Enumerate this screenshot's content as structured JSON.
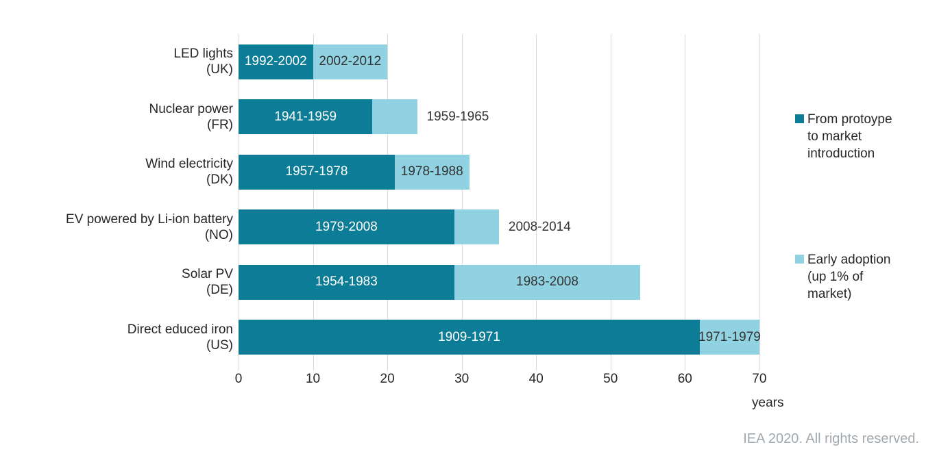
{
  "chart_data": {
    "type": "bar",
    "orientation": "horizontal",
    "stacked": true,
    "title": "",
    "xlabel": "years",
    "xticks": [
      0,
      10,
      20,
      30,
      40,
      50,
      60,
      70
    ],
    "xmax": 72.5,
    "grid": true,
    "legend_position": "right",
    "categories": [
      [
        "LED lights",
        "(UK)"
      ],
      [
        "Nuclear power",
        "(FR)"
      ],
      [
        "Wind electricity",
        "(DK)"
      ],
      [
        "EV powered by Li-ion battery",
        "(NO)"
      ],
      [
        "Solar PV",
        "(DE)"
      ],
      [
        "Direct educed iron",
        "(US)"
      ]
    ],
    "series": [
      {
        "name": "From protoype to market introduction",
        "color": "#0d7c96",
        "label_color": "#ffffff",
        "values": [
          10,
          18,
          21,
          29,
          29,
          62
        ],
        "labels": [
          "1992-2002",
          "1941-1959",
          "1957-1978",
          "1979-2008",
          "1954-1983",
          "1909-1971"
        ],
        "placements": [
          "inside",
          "inside",
          "inside",
          "inside",
          "inside",
          "inside"
        ]
      },
      {
        "name": "Early adoption (up 1% of market)",
        "color": "#90d2e2",
        "label_color": "#333333",
        "values": [
          10,
          6,
          10,
          6,
          25,
          8
        ],
        "labels": [
          "2002-2012",
          "1959-1965",
          "1978-1988",
          "2008-2014",
          "1983-2008",
          "1971-1979"
        ],
        "placements": [
          "inside",
          "outside",
          "inside",
          "outside",
          "inside",
          "inside"
        ]
      }
    ],
    "totals": [
      20,
      24,
      31,
      35,
      54,
      70
    ]
  },
  "legend": {
    "items": [
      {
        "label": "From protoype\nto market\nintroduction",
        "color": "#0d7c96"
      },
      {
        "label": "Early adoption\n(up 1% of\nmarket)",
        "color": "#90d2e2"
      }
    ]
  },
  "axis": {
    "unit_label": "years"
  },
  "footer": {
    "text": "IEA 2020. All rights reserved."
  }
}
